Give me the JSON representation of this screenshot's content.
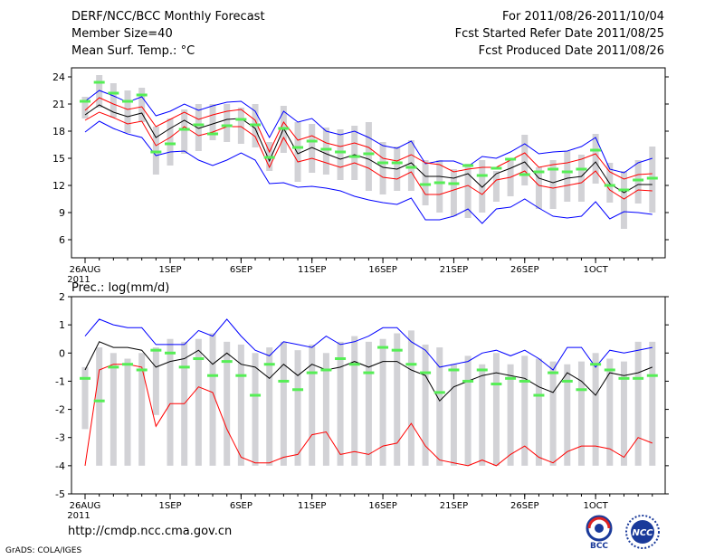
{
  "header": {
    "title": "DERF/NCC/BCC Monthly Forecast",
    "member_size": "Member Size=40",
    "variable_label": "Mean Surf. Temp.: °C",
    "for_period": "For 2011/08/26-2011/10/04",
    "fcst_started": "Fcst Started Refer Date 2011/08/25",
    "fcst_produced": "Fcst Produced Date 2011/08/26"
  },
  "footer": {
    "url": "http://cmdp.ncc.cma.gov.cn",
    "grads_credit": "GrADS: COLA/IGES",
    "logo_left_text": "BCC",
    "logo_right_text": "NCC"
  },
  "colors": {
    "max_line": "#0000ff",
    "min_line": "#ff0000",
    "mean_line": "#000000",
    "observed_marker": "#55ee55",
    "spread_bar": "#d2d2d6"
  },
  "chart_data": [
    {
      "type": "line",
      "title": "Mean Surf. Temp.: °C",
      "xlabel": "",
      "ylabel": "",
      "ylim": [
        4,
        25
      ],
      "yticks": [
        6,
        9,
        12,
        15,
        18,
        21,
        24
      ],
      "x_tick_labels": [
        {
          "day": 1,
          "label": "26AUG",
          "sub": "2011"
        },
        {
          "day": 7,
          "label": "1SEP"
        },
        {
          "day": 12,
          "label": "6SEP"
        },
        {
          "day": 17,
          "label": "11SEP"
        },
        {
          "day": 22,
          "label": "16SEP"
        },
        {
          "day": 27,
          "label": "21SEP"
        },
        {
          "day": 32,
          "label": "26SEP"
        },
        {
          "day": 37,
          "label": "1OCT"
        }
      ],
      "series": [
        {
          "name": "ensemble max",
          "color": "#0000ff",
          "values": [
            21.3,
            22.5,
            21.9,
            21.2,
            21.8,
            19.7,
            20.2,
            21.0,
            20.3,
            20.8,
            21.2,
            21.3,
            20.2,
            17.3,
            20.2,
            19.0,
            19.4,
            18.0,
            17.6,
            18.0,
            17.3,
            16.4,
            16.1,
            16.9,
            14.4,
            14.7,
            14.7,
            14.1,
            15.2,
            15.0,
            15.7,
            16.6,
            15.5,
            15.7,
            15.8,
            16.3,
            17.3,
            13.8,
            13.4,
            14.5,
            15.0
          ]
        },
        {
          "name": "upper range",
          "color": "#ff0000",
          "values": [
            20.3,
            21.7,
            21.0,
            20.4,
            20.7,
            18.5,
            19.3,
            20.1,
            19.3,
            19.8,
            20.2,
            20.4,
            19.2,
            15.7,
            19.0,
            17.0,
            17.5,
            16.7,
            16.3,
            16.7,
            16.2,
            15.0,
            14.7,
            15.4,
            14.5,
            14.3,
            13.5,
            13.8,
            14.0,
            14.0,
            14.8,
            15.6,
            14.0,
            14.3,
            14.5,
            14.9,
            15.5,
            13.5,
            12.7,
            13.2,
            13.3
          ]
        },
        {
          "name": "ensemble mean",
          "color": "#000000",
          "values": [
            19.8,
            20.9,
            20.1,
            19.6,
            20.0,
            17.3,
            18.3,
            19.2,
            18.3,
            18.8,
            19.3,
            19.4,
            18.3,
            14.7,
            18.3,
            15.5,
            16.2,
            15.5,
            14.9,
            15.4,
            14.9,
            14.0,
            13.8,
            14.5,
            13.0,
            13.0,
            12.8,
            13.3,
            11.8,
            13.3,
            13.9,
            14.6,
            12.8,
            12.3,
            12.8,
            13.0,
            14.6,
            12.2,
            11.2,
            12.1,
            12.1
          ]
        },
        {
          "name": "lower range",
          "color": "#ff0000",
          "values": [
            19.2,
            20.1,
            19.5,
            18.8,
            19.1,
            16.4,
            17.3,
            18.5,
            17.5,
            17.9,
            18.5,
            18.5,
            17.4,
            14.0,
            17.3,
            14.6,
            15.0,
            14.5,
            14.0,
            14.5,
            13.9,
            12.9,
            12.7,
            13.5,
            11.0,
            11.0,
            11.5,
            12.0,
            11.0,
            12.6,
            12.9,
            13.6,
            12.0,
            11.7,
            12.0,
            12.3,
            13.6,
            11.5,
            10.5,
            11.5,
            11.4
          ]
        },
        {
          "name": "ensemble min",
          "color": "#0000ff",
          "values": [
            17.9,
            19.1,
            18.3,
            17.7,
            17.3,
            15.3,
            15.7,
            15.8,
            14.8,
            14.2,
            14.8,
            15.6,
            14.8,
            12.2,
            12.3,
            11.8,
            11.9,
            11.7,
            11.4,
            10.8,
            10.4,
            10.1,
            9.9,
            10.6,
            8.2,
            8.2,
            8.6,
            9.4,
            7.8,
            9.4,
            9.6,
            10.5,
            9.5,
            8.6,
            8.4,
            8.6,
            10.2,
            8.3,
            9.1,
            9.0,
            8.8
          ]
        }
      ],
      "observed": [
        21.3,
        23.4,
        22.2,
        21.3,
        22.0,
        15.7,
        16.6,
        18.2,
        18.7,
        17.7,
        18.6,
        19.3,
        18.7,
        15.1,
        18.3,
        16.2,
        16.9,
        16.0,
        15.7,
        15.2,
        15.5,
        14.5,
        14.5,
        14.0,
        12.1,
        12.3,
        12.2,
        14.2,
        13.1,
        13.9,
        14.9,
        13.2,
        13.5,
        13.8,
        13.5,
        13.8,
        15.9,
        12.0,
        11.5,
        12.6,
        12.8
      ],
      "spread_bars": [
        [
          19.4,
          21.8
        ],
        [
          20.6,
          24.2
        ],
        [
          19.5,
          23.3
        ],
        [
          17.8,
          22.5
        ],
        [
          19.0,
          22.8
        ],
        [
          13.2,
          18.5
        ],
        [
          14.2,
          19.4
        ],
        [
          15.5,
          20.4
        ],
        [
          15.8,
          21.0
        ],
        [
          17.0,
          21.0
        ],
        [
          16.8,
          21.0
        ],
        [
          16.6,
          20.6
        ],
        [
          16.2,
          21.0
        ],
        [
          13.6,
          16.8
        ],
        [
          15.6,
          20.8
        ],
        [
          12.4,
          19.0
        ],
        [
          13.4,
          18.8
        ],
        [
          13.2,
          18.4
        ],
        [
          12.6,
          18.2
        ],
        [
          12.6,
          18.6
        ],
        [
          11.4,
          19.0
        ],
        [
          11.0,
          16.8
        ],
        [
          11.4,
          16.3
        ],
        [
          11.4,
          17.0
        ],
        [
          9.8,
          14.8
        ],
        [
          9.0,
          14.8
        ],
        [
          8.6,
          13.8
        ],
        [
          8.4,
          14.4
        ],
        [
          9.0,
          14.8
        ],
        [
          10.2,
          13.6
        ],
        [
          10.8,
          14.8
        ],
        [
          12.0,
          17.6
        ],
        [
          9.4,
          14.0
        ],
        [
          9.4,
          14.8
        ],
        [
          10.2,
          15.8
        ],
        [
          10.2,
          15.4
        ],
        [
          12.2,
          17.7
        ],
        [
          10.1,
          14.5
        ],
        [
          7.2,
          13.6
        ],
        [
          10.0,
          14.8
        ],
        [
          9.0,
          16.3
        ]
      ]
    },
    {
      "type": "line",
      "title": "Prec.: log(mm/d)",
      "xlabel": "",
      "ylabel": "",
      "ylim": [
        -5,
        2
      ],
      "yticks": [
        -5,
        -4,
        -3,
        -2,
        -1,
        0,
        1,
        2
      ],
      "x_tick_labels": [
        {
          "day": 1,
          "label": "26AUG",
          "sub": "2011"
        },
        {
          "day": 7,
          "label": "1SEP"
        },
        {
          "day": 12,
          "label": "6SEP"
        },
        {
          "day": 17,
          "label": "11SEP"
        },
        {
          "day": 22,
          "label": "16SEP"
        },
        {
          "day": 27,
          "label": "21SEP"
        },
        {
          "day": 32,
          "label": "26SEP"
        },
        {
          "day": 37,
          "label": "1OCT"
        }
      ],
      "series": [
        {
          "name": "ensemble max",
          "color": "#0000ff",
          "values": [
            0.6,
            1.2,
            1.0,
            0.9,
            0.9,
            0.3,
            0.3,
            0.3,
            0.8,
            0.6,
            1.2,
            0.6,
            0.1,
            -0.1,
            0.4,
            0.3,
            0.2,
            0.6,
            0.3,
            0.4,
            0.6,
            0.9,
            0.9,
            0.4,
            0.1,
            -0.5,
            -0.4,
            -0.3,
            0.0,
            0.1,
            -0.1,
            0.1,
            -0.2,
            -0.6,
            0.2,
            0.2,
            -0.5,
            0.1,
            0.0,
            0.1,
            0.2
          ]
        },
        {
          "name": "ensemble mean",
          "color": "#000000",
          "values": [
            -0.6,
            0.4,
            0.2,
            0.2,
            0.1,
            -0.5,
            -0.3,
            -0.2,
            0.1,
            -0.4,
            0.0,
            -0.4,
            -0.5,
            -0.9,
            -0.4,
            -0.8,
            -0.4,
            -0.6,
            -0.5,
            -0.3,
            -0.5,
            -0.3,
            -0.3,
            -0.6,
            -0.8,
            -1.7,
            -1.2,
            -1.0,
            -0.8,
            -0.7,
            -0.8,
            -0.9,
            -1.2,
            -1.4,
            -0.7,
            -1.0,
            -1.5,
            -0.7,
            -0.8,
            -0.7,
            -0.5
          ]
        },
        {
          "name": "ensemble min",
          "color": "#ff0000",
          "values": [
            -4.0,
            -0.6,
            -0.4,
            -0.4,
            -0.5,
            -2.6,
            -1.8,
            -1.8,
            -1.2,
            -1.4,
            -2.7,
            -3.7,
            -3.9,
            -3.9,
            -3.7,
            -3.6,
            -2.9,
            -2.8,
            -3.6,
            -3.5,
            -3.6,
            -3.3,
            -3.2,
            -2.5,
            -3.3,
            -3.8,
            -3.9,
            -4.0,
            -3.8,
            -4.0,
            -3.6,
            -3.3,
            -3.7,
            -3.9,
            -3.5,
            -3.3,
            -3.3,
            -3.4,
            -3.7,
            -3.0,
            -3.2
          ]
        }
      ],
      "observed": [
        -0.9,
        -1.7,
        -0.5,
        -0.4,
        -0.6,
        0.1,
        0.0,
        -0.5,
        -0.2,
        -0.8,
        -0.3,
        -0.8,
        -1.5,
        -0.4,
        -1.0,
        -1.3,
        -0.7,
        -0.6,
        -0.2,
        -0.4,
        -0.7,
        0.2,
        0.1,
        -0.4,
        -0.7,
        -1.4,
        -0.6,
        -1.0,
        -0.6,
        -1.1,
        -0.9,
        -1.0,
        -1.5,
        -0.7,
        -1.0,
        -1.3,
        -0.4,
        -0.6,
        -0.9,
        -0.9,
        -0.8
      ],
      "spread_bars": [
        [
          -2.7,
          -0.5
        ],
        [
          -4.0,
          0.2
        ],
        [
          -4.0,
          0.0
        ],
        [
          -4.0,
          -0.2
        ],
        [
          -4.0,
          0.0
        ],
        [
          -2.2,
          0.2
        ],
        [
          -4.0,
          0.5
        ],
        [
          -4.0,
          0.4
        ],
        [
          -4.0,
          0.5
        ],
        [
          -4.0,
          0.7
        ],
        [
          -4.0,
          0.4
        ],
        [
          -4.0,
          0.3
        ],
        [
          -4.0,
          0.0
        ],
        [
          -4.0,
          0.2
        ],
        [
          -4.0,
          0.4
        ],
        [
          -4.0,
          0.1
        ],
        [
          -4.0,
          0.3
        ],
        [
          -4.0,
          0.0
        ],
        [
          -4.0,
          0.4
        ],
        [
          -4.0,
          0.6
        ],
        [
          -4.0,
          0.4
        ],
        [
          -4.0,
          0.5
        ],
        [
          -4.0,
          0.7
        ],
        [
          -4.0,
          0.8
        ],
        [
          -4.0,
          0.3
        ],
        [
          -4.0,
          0.2
        ],
        [
          -4.0,
          -0.4
        ],
        [
          -4.0,
          -0.1
        ],
        [
          -4.0,
          -0.4
        ],
        [
          -4.0,
          0.0
        ],
        [
          -4.0,
          -0.4
        ],
        [
          -4.0,
          -0.1
        ],
        [
          -4.0,
          -0.2
        ],
        [
          -4.0,
          -0.3
        ],
        [
          -4.0,
          -0.4
        ],
        [
          -4.0,
          -0.3
        ],
        [
          -4.0,
          0.0
        ],
        [
          -4.0,
          -0.2
        ],
        [
          -4.0,
          -0.3
        ],
        [
          -4.0,
          0.4
        ],
        [
          -4.0,
          0.4
        ]
      ]
    }
  ]
}
